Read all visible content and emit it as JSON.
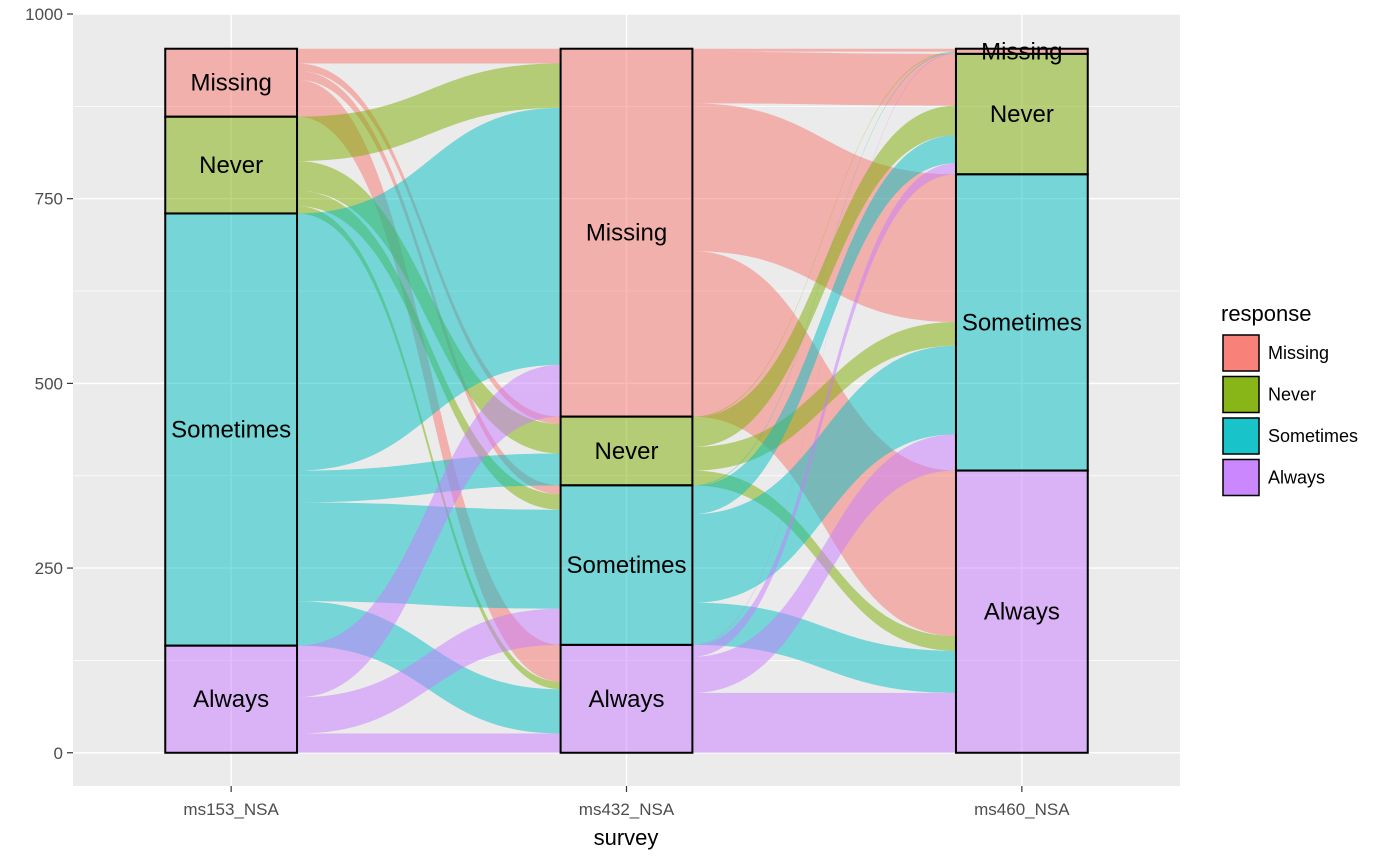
{
  "chart_data": {
    "type": "alluvial",
    "title": "",
    "xlabel": "survey",
    "ylabel": "",
    "ylim": [
      -45,
      1000
    ],
    "y_ticks": [
      0,
      250,
      500,
      750,
      1000
    ],
    "grid": true,
    "legend": {
      "title": "response",
      "position": "right",
      "entries": [
        {
          "label": "Missing",
          "color": "#F8766D"
        },
        {
          "label": "Never",
          "color": "#7CAE00"
        },
        {
          "label": "Sometimes",
          "color": "#00BFC4"
        },
        {
          "label": "Always",
          "color": "#C77CFF"
        }
      ]
    },
    "categories": [
      "ms153_NSA",
      "ms432_NSA",
      "ms460_NSA"
    ],
    "category_order": [
      "Missing",
      "Never",
      "Sometimes",
      "Always"
    ],
    "strata": [
      {
        "Missing": 92,
        "Never": 131,
        "Sometimes": 585,
        "Always": 145
      },
      {
        "Missing": 498,
        "Never": 93,
        "Sometimes": 216,
        "Always": 146
      },
      {
        "Missing": 7,
        "Never": 163,
        "Sometimes": 401,
        "Always": 382
      }
    ],
    "flows_1_2": [
      {
        "from": "Missing",
        "to": "Missing",
        "value": 20
      },
      {
        "from": "Missing",
        "to": "Never",
        "value": 10
      },
      {
        "from": "Missing",
        "to": "Sometimes",
        "value": 12
      },
      {
        "from": "Missing",
        "to": "Always",
        "value": 50
      },
      {
        "from": "Never",
        "to": "Missing",
        "value": 60
      },
      {
        "from": "Never",
        "to": "Never",
        "value": 40
      },
      {
        "from": "Never",
        "to": "Sometimes",
        "value": 21
      },
      {
        "from": "Never",
        "to": "Always",
        "value": 10
      },
      {
        "from": "Sometimes",
        "to": "Missing",
        "value": 348
      },
      {
        "from": "Sometimes",
        "to": "Never",
        "value": 43
      },
      {
        "from": "Sometimes",
        "to": "Sometimes",
        "value": 134
      },
      {
        "from": "Sometimes",
        "to": "Always",
        "value": 60
      },
      {
        "from": "Always",
        "to": "Missing",
        "value": 70
      },
      {
        "from": "Always",
        "to": "Never",
        "value": 0
      },
      {
        "from": "Always",
        "to": "Sometimes",
        "value": 49
      },
      {
        "from": "Always",
        "to": "Always",
        "value": 26
      }
    ],
    "flows_2_3": [
      {
        "from": "Missing",
        "to": "Missing",
        "value": 4
      },
      {
        "from": "Missing",
        "to": "Never",
        "value": 70
      },
      {
        "from": "Missing",
        "to": "Sometimes",
        "value": 200
      },
      {
        "from": "Missing",
        "to": "Always",
        "value": 224
      },
      {
        "from": "Never",
        "to": "Missing",
        "value": 1
      },
      {
        "from": "Never",
        "to": "Never",
        "value": 40
      },
      {
        "from": "Never",
        "to": "Sometimes",
        "value": 32
      },
      {
        "from": "Never",
        "to": "Always",
        "value": 20
      },
      {
        "from": "Sometimes",
        "to": "Missing",
        "value": 1
      },
      {
        "from": "Sometimes",
        "to": "Never",
        "value": 38
      },
      {
        "from": "Sometimes",
        "to": "Sometimes",
        "value": 120
      },
      {
        "from": "Sometimes",
        "to": "Always",
        "value": 57
      },
      {
        "from": "Always",
        "to": "Missing",
        "value": 1
      },
      {
        "from": "Always",
        "to": "Never",
        "value": 15
      },
      {
        "from": "Always",
        "to": "Sometimes",
        "value": 49
      },
      {
        "from": "Always",
        "to": "Always",
        "value": 81
      }
    ]
  }
}
